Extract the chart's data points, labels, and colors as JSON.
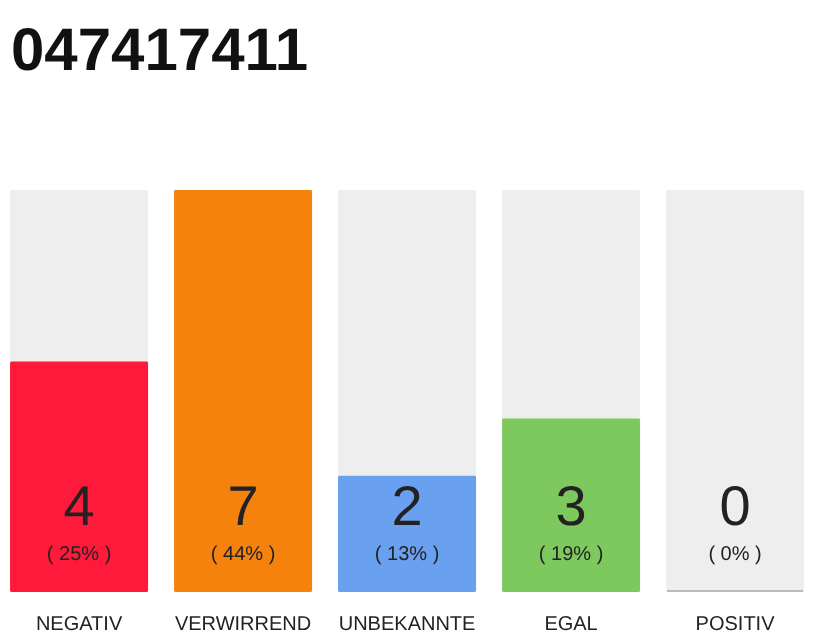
{
  "chart_data": {
    "type": "bar",
    "title": "047417411",
    "categories": [
      "NEGATIV",
      "VERWIRREND",
      "UNBEKANNTE",
      "EGAL",
      "POSITIV"
    ],
    "values": [
      4,
      7,
      2,
      3,
      0
    ],
    "colors": [
      "#ff1a3c",
      "#f5820d",
      "#6aa0f0",
      "#7dc95e",
      "#bbbbbb"
    ],
    "data_labels": true,
    "annotations": [
      "( 25% )",
      "( 44% )",
      "( 13% )",
      "( 19% )",
      "( 0% )"
    ],
    "grid": false
  }
}
